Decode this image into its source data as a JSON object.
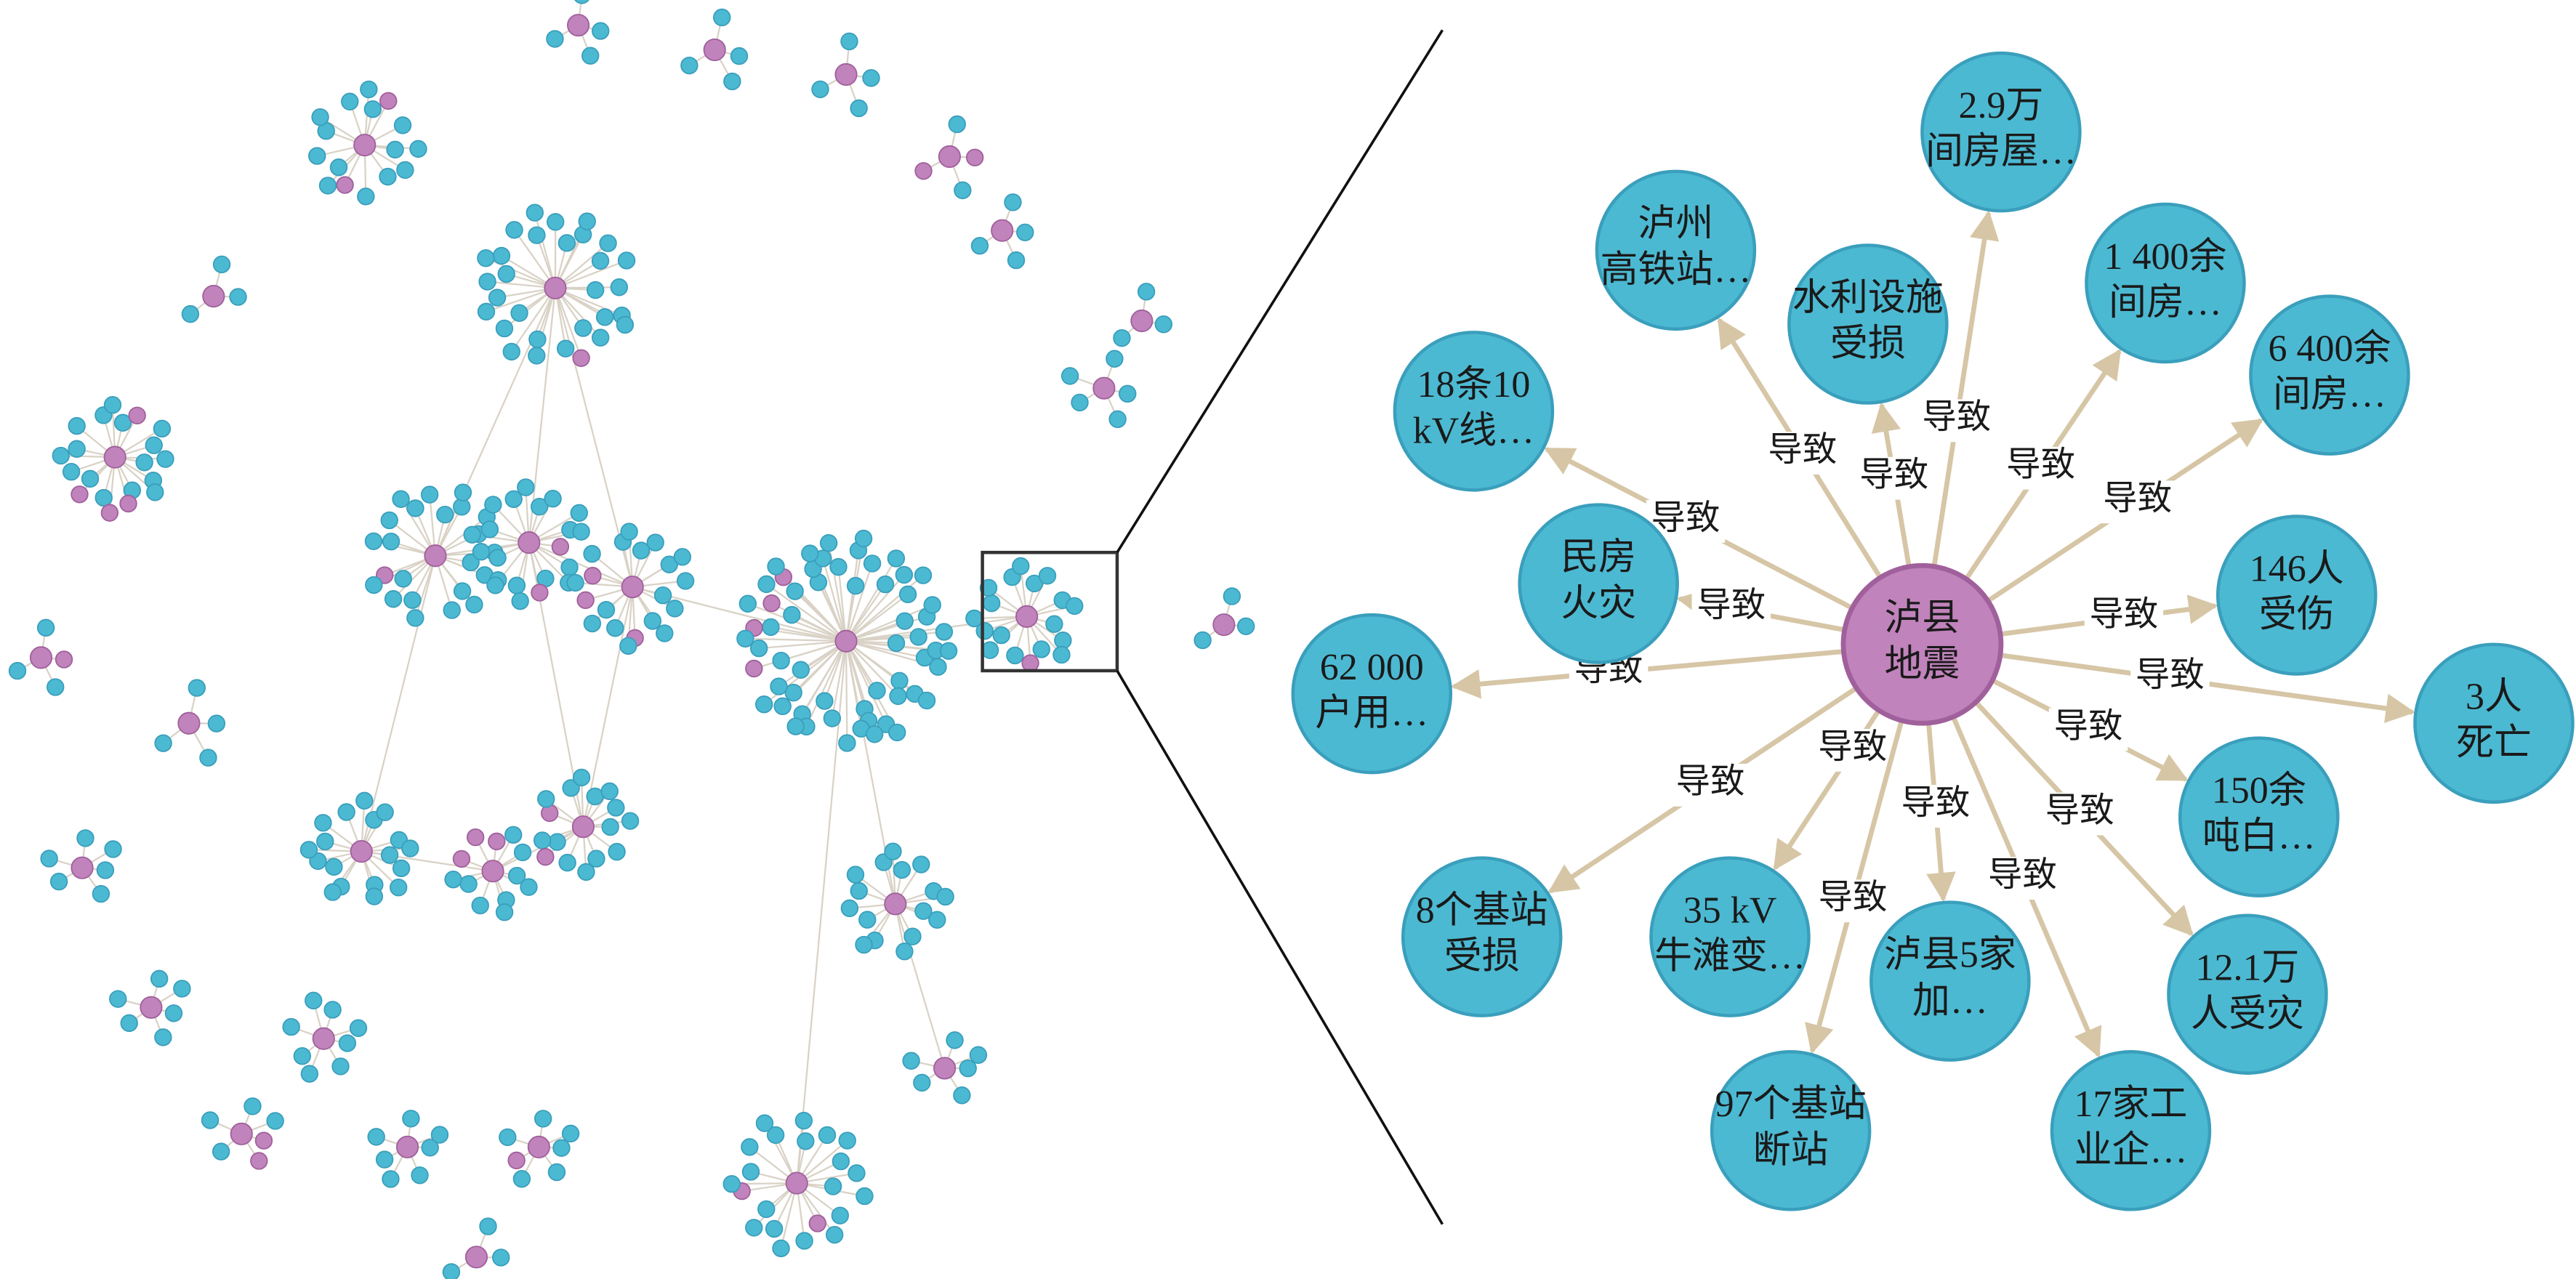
{
  "center": {
    "label": [
      "泸县",
      "地震"
    ]
  },
  "nodes": [
    {
      "label": [
        "2.9万",
        "间房屋…"
      ]
    },
    {
      "label": [
        "泸州",
        "高铁站…"
      ]
    },
    {
      "label": [
        "水利设施",
        "受损"
      ]
    },
    {
      "label": [
        "1 400余",
        "间房…"
      ]
    },
    {
      "label": [
        "6 400余",
        "间房…"
      ]
    },
    {
      "label": [
        "18条10",
        "kV线…"
      ]
    },
    {
      "label": [
        "民房",
        "火灾"
      ]
    },
    {
      "label": [
        "146人",
        "受伤"
      ]
    },
    {
      "label": [
        "62 000",
        "户用…"
      ]
    },
    {
      "label": [
        "3人",
        "死亡"
      ]
    },
    {
      "label": [
        "150余",
        "吨白…"
      ]
    },
    {
      "label": [
        "8个基站",
        "受损"
      ]
    },
    {
      "label": [
        "35 kV",
        "牛滩变…"
      ]
    },
    {
      "label": [
        "泸县5家",
        "加…"
      ]
    },
    {
      "label": [
        "12.1万",
        "人受灾"
      ]
    },
    {
      "label": [
        "97个基站",
        "断站"
      ]
    },
    {
      "label": [
        "17家工",
        "业企…"
      ]
    }
  ],
  "edges": [
    {
      "label": "导致"
    },
    {
      "label": "导致"
    },
    {
      "label": "导致"
    },
    {
      "label": "导致"
    },
    {
      "label": "导致"
    },
    {
      "label": "导致"
    },
    {
      "label": "导致"
    },
    {
      "label": "导致"
    },
    {
      "label": "导致"
    },
    {
      "label": "导致"
    },
    {
      "label": "导致"
    },
    {
      "label": "导致"
    },
    {
      "label": "导致"
    },
    {
      "label": "导致"
    },
    {
      "label": "导致"
    },
    {
      "label": "导致"
    },
    {
      "label": "导致"
    }
  ]
}
